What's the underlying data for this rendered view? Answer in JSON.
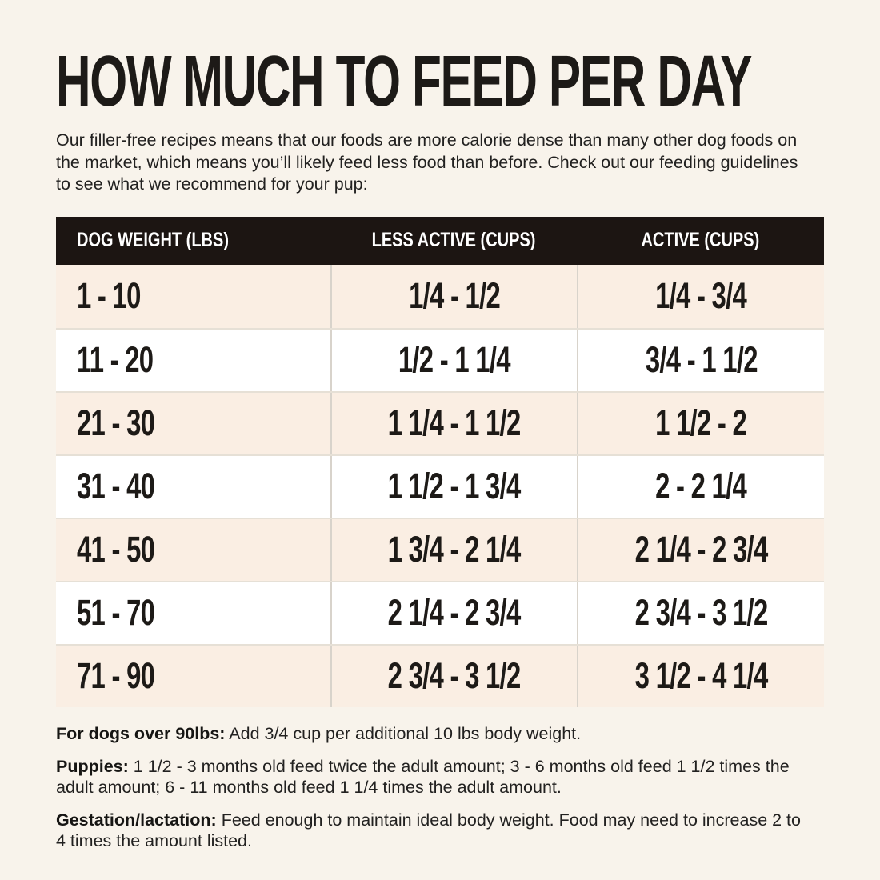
{
  "page": {
    "title": "HOW MUCH TO FEED PER DAY",
    "intro": "Our filler-free recipes means that our foods are more calorie dense than many other dog foods on the market, which means you’ll likely feed less food than before. Check out our feeding guidelines to see what we recommend for your pup:"
  },
  "table": {
    "headers": [
      "DOG WEIGHT (LBS)",
      "LESS ACTIVE (CUPS)",
      "ACTIVE (CUPS)"
    ],
    "rows": [
      [
        "1 - 10",
        "1/4 - 1/2",
        "1/4 - 3/4"
      ],
      [
        "11 - 20",
        "1/2 - 1 1/4",
        "3/4 - 1 1/2"
      ],
      [
        "21 - 30",
        "1 1/4 - 1 1/2",
        "1 1/2 - 2"
      ],
      [
        "31 - 40",
        "1 1/2 - 1 3/4",
        "2 - 2 1/4"
      ],
      [
        "41 - 50",
        "1 3/4 - 2 1/4",
        "2 1/4 - 2 3/4"
      ],
      [
        "51 - 70",
        "2 1/4 - 2 3/4",
        "2 3/4 - 3 1/2"
      ],
      [
        "71 - 90",
        "2 3/4 - 3 1/2",
        "3 1/2 - 4 1/4"
      ]
    ]
  },
  "notes": [
    {
      "label": "For dogs over 90lbs:",
      "text": "Add 3/4 cup per additional 10 lbs body weight."
    },
    {
      "label": "Puppies:",
      "text": "1 1/2 - 3 months old feed twice the adult amount; 3 - 6 months old feed 1 1/2 times the adult amount; 6 - 11 months old feed 1 1/4 times the adult amount."
    },
    {
      "label": "Gestation/lactation:",
      "text": "Feed enough to maintain ideal body weight. Food may need to increase 2 to 4 times the amount listed."
    }
  ],
  "colors": {
    "background": "#f8f3eb",
    "row_stripe": "#faeee3",
    "row_plain": "#ffffff",
    "header_bg": "#1c1512",
    "header_text": "#ffffff",
    "text": "#222120",
    "divider": "#d8d3cb",
    "row_line": "#e6e0d6"
  }
}
